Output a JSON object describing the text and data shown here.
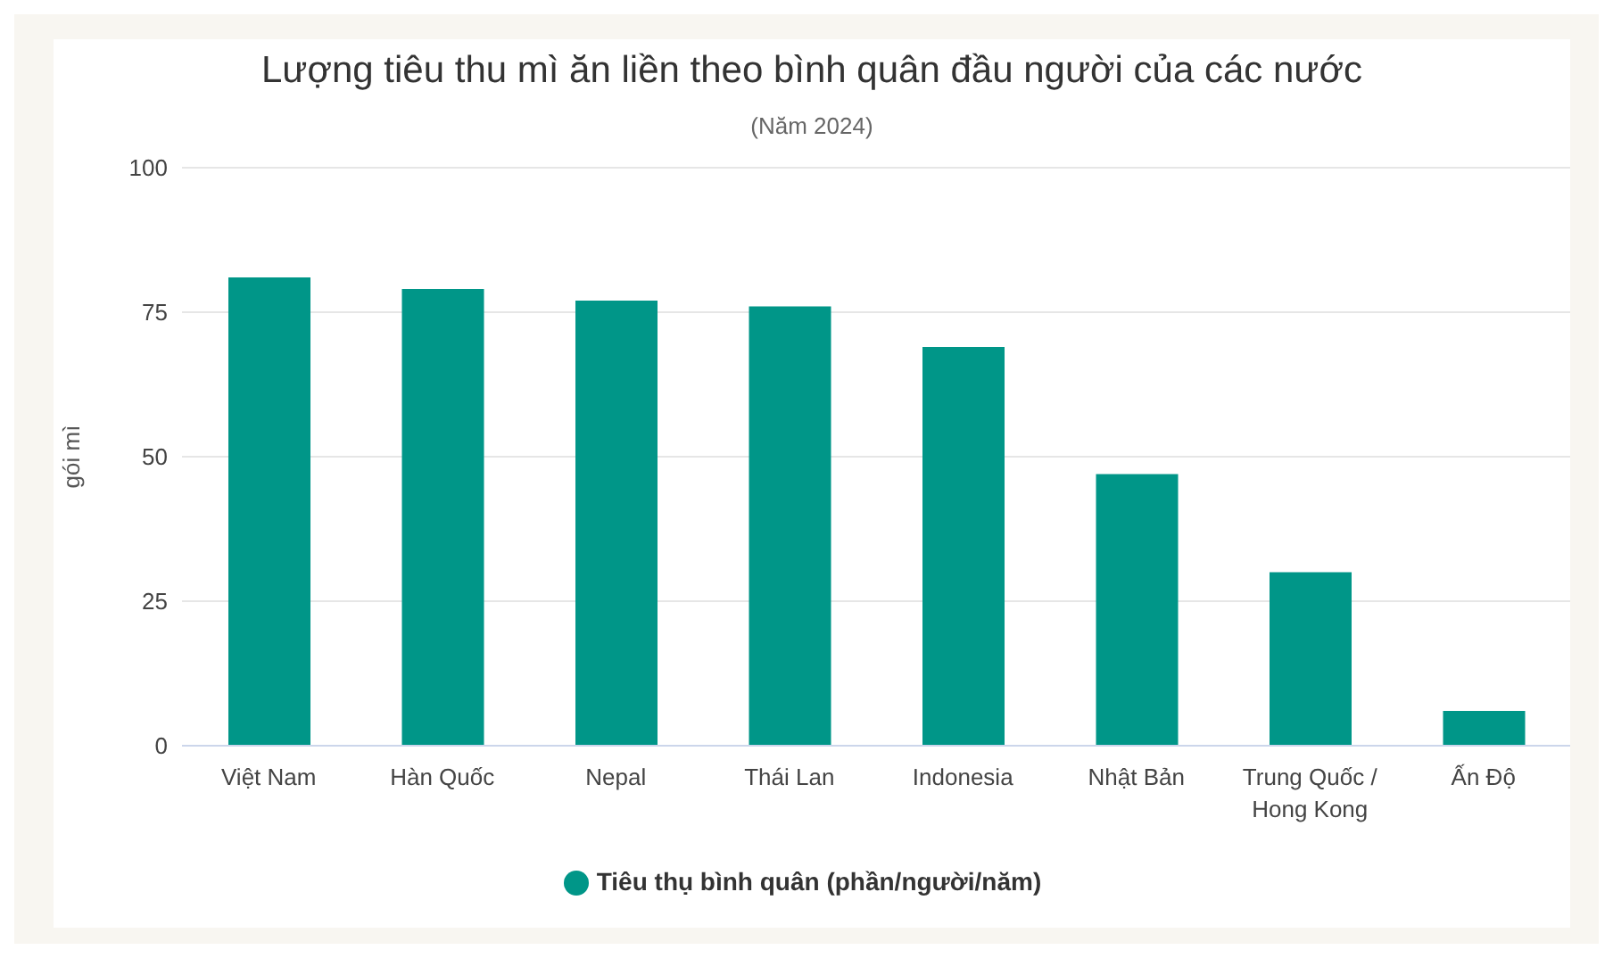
{
  "chart_data": {
    "type": "bar",
    "title": "Lượng tiêu thu mì ăn liền theo bình quân đầu người của các nước",
    "subtitle": "(Năm 2024)",
    "ylabel": "gói mì",
    "categories": [
      "Việt Nam",
      "Hàn Quốc",
      "Nepal",
      "Thái Lan",
      "Indonesia",
      "Nhật Bản",
      "Trung Quốc / Hong Kong",
      "Ấn Độ"
    ],
    "series": [
      {
        "name": "Tiêu thụ bình quân (phần/người/năm)",
        "color": "#009688",
        "values": [
          81,
          79,
          77,
          76,
          69,
          47,
          30,
          6
        ]
      }
    ],
    "ylim": [
      0,
      100
    ],
    "yticks": [
      0,
      25,
      50,
      75,
      100
    ],
    "grid": "y",
    "legend": "bottom"
  }
}
